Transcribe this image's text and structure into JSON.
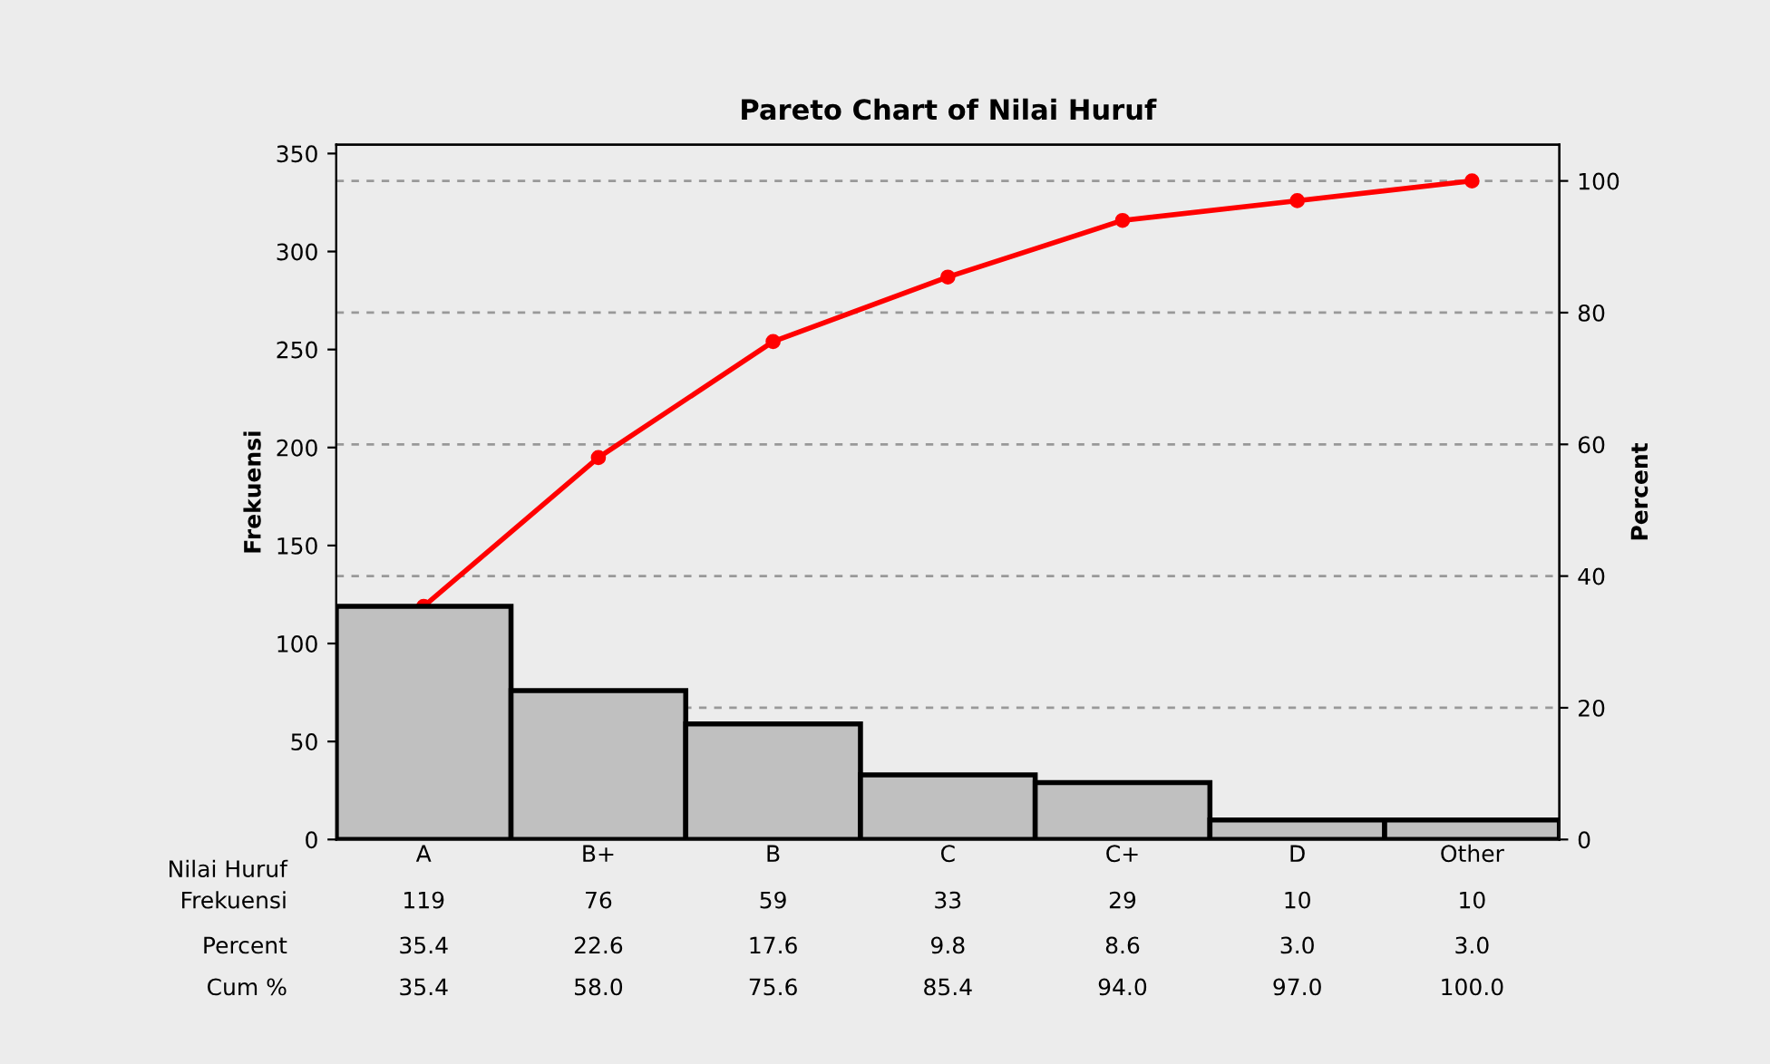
{
  "chart_data": {
    "type": "bar",
    "title": "Pareto Chart of Nilai Huruf",
    "xlabel": "Nilai Huruf",
    "ylabel": "Frekuensi",
    "y2label": "Percent",
    "categories": [
      "A",
      "B+",
      "B",
      "C",
      "C+",
      "D",
      "Other"
    ],
    "series": [
      {
        "color": "#c0c0c0",
        "values": [
          119,
          76,
          59,
          33,
          29,
          10,
          10
        ],
        "value_labels": [
          "119",
          "76",
          "59",
          "33",
          "29",
          "10",
          "10"
        ]
      },
      {
        "type": "line",
        "axis": "y2",
        "color": "#ff0000",
        "marker": "circle",
        "values": [
          35.4,
          58.0,
          75.6,
          85.4,
          94.0,
          97.0,
          100.0
        ],
        "value_labels": [
          "35.4",
          "58.0",
          "75.6",
          "85.4",
          "94.0",
          "97.0",
          "100.0"
        ]
      }
    ],
    "annotations": [
      "Frekuensi",
      "Percent",
      "Cum %",
      "35.4",
      "22.6",
      "17.6",
      "9.8",
      "8.6",
      "3.0",
      "3.0"
    ],
    "ylim": [
      0,
      354.5
    ],
    "yticks": [
      0,
      50,
      100,
      150,
      200,
      250,
      300,
      350
    ],
    "y2lim": [
      0,
      105.5
    ],
    "y2ticks": [
      0,
      20,
      40,
      60,
      80,
      100
    ],
    "grid": "y2"
  }
}
